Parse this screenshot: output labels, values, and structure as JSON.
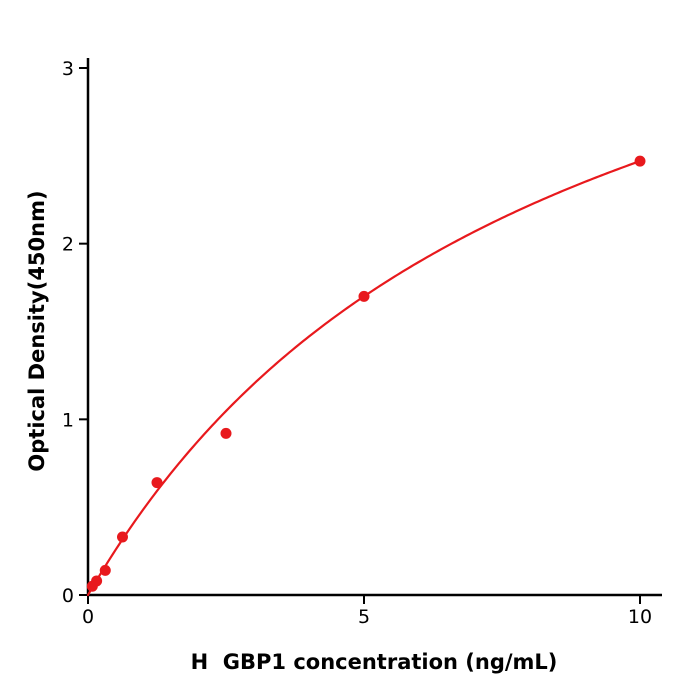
{
  "figure": {
    "background": "#ffffff"
  },
  "chart_data": {
    "type": "scatter",
    "title": "",
    "xlabel": "H  GBP1 concentration (ng/mL)",
    "ylabel": "Optical Density(450nm)",
    "x": [
      0.078,
      0.156,
      0.313,
      0.625,
      1.25,
      2.5,
      5,
      10
    ],
    "y": [
      0.05,
      0.08,
      0.14,
      0.33,
      0.64,
      0.92,
      1.7,
      2.47
    ],
    "xlim": [
      0,
      10
    ],
    "ylim": [
      0,
      3
    ],
    "x_ticks": [
      "0",
      "5",
      "10"
    ],
    "x_tick_values": [
      0,
      5,
      10
    ],
    "y_ticks": [
      "0",
      "1",
      "2",
      "3"
    ],
    "y_tick_values": [
      0,
      1,
      2,
      3
    ],
    "grid": false,
    "legend": "none",
    "marker_color": "#e8191d",
    "line_color": "#e8191d",
    "axis_color": "#000000",
    "fit": {
      "type": "michaelis_menten",
      "vmax": 4.515,
      "km": 8.28,
      "x_start": 0,
      "x_end": 10
    }
  }
}
